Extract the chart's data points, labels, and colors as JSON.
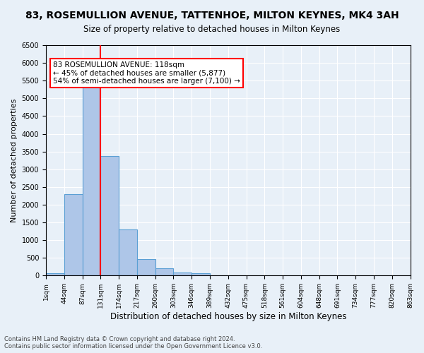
{
  "title": "83, ROSEMULLION AVENUE, TATTENHOE, MILTON KEYNES, MK4 3AH",
  "subtitle": "Size of property relative to detached houses in Milton Keynes",
  "xlabel": "Distribution of detached houses by size in Milton Keynes",
  "ylabel": "Number of detached properties",
  "bar_values": [
    75,
    2300,
    5450,
    3380,
    1300,
    460,
    210,
    90,
    65,
    0,
    0,
    0,
    0,
    0,
    0,
    0,
    0,
    0,
    0,
    0
  ],
  "bar_labels": [
    "1sqm",
    "44sqm",
    "87sqm",
    "131sqm",
    "174sqm",
    "217sqm",
    "260sqm",
    "303sqm",
    "346sqm",
    "389sqm",
    "432sqm",
    "475sqm",
    "518sqm",
    "561sqm",
    "604sqm",
    "648sqm",
    "691sqm",
    "734sqm",
    "777sqm",
    "820sqm",
    "863sqm"
  ],
  "bar_color": "#aec6e8",
  "bar_edge_color": "#5a9fd4",
  "redline_x": 2.5,
  "ylim": [
    0,
    6500
  ],
  "yticks": [
    0,
    500,
    1000,
    1500,
    2000,
    2500,
    3000,
    3500,
    4000,
    4500,
    5000,
    5500,
    6000,
    6500
  ],
  "annotation_text": "83 ROSEMULLION AVENUE: 118sqm\n← 45% of detached houses are smaller (5,877)\n54% of semi-detached houses are larger (7,100) →",
  "footer_text": "Contains HM Land Registry data © Crown copyright and database right 2024.\nContains public sector information licensed under the Open Government Licence v3.0.",
  "background_color": "#e8f0f8",
  "plot_bg_color": "#e8f0f8",
  "grid_color": "#ffffff"
}
